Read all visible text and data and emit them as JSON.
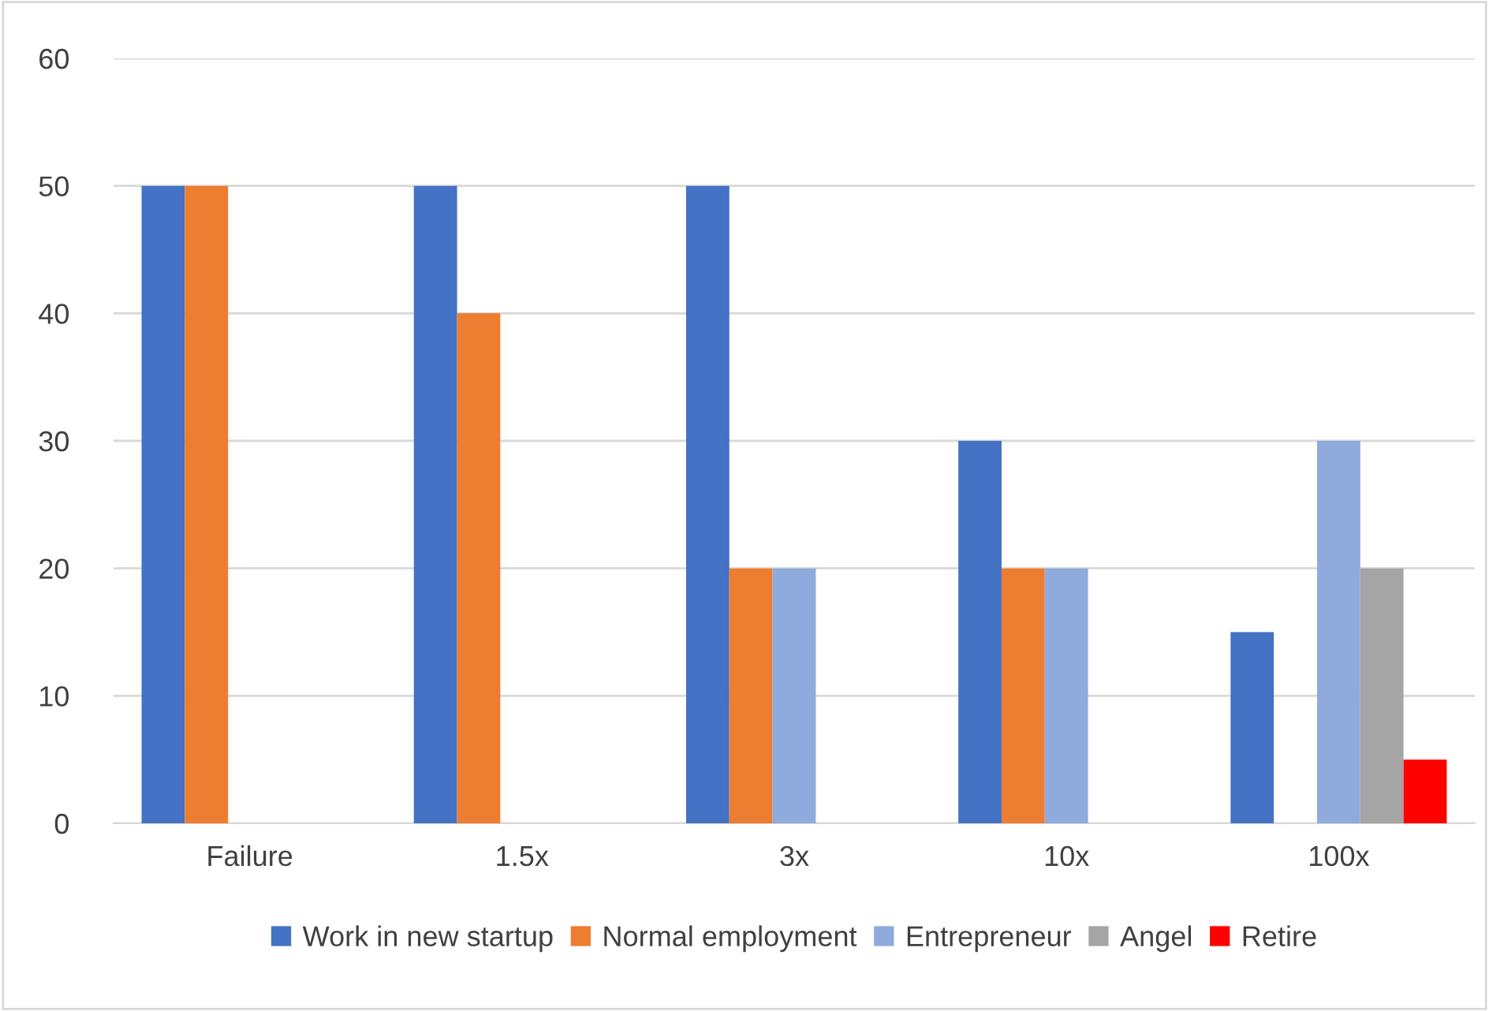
{
  "chart_data": {
    "type": "bar",
    "categories": [
      "Failure",
      "1.5x",
      "3x",
      "10x",
      "100x"
    ],
    "series": [
      {
        "name": "Work in new startup",
        "color": "#4472c4",
        "values": [
          50,
          50,
          50,
          30,
          15
        ]
      },
      {
        "name": "Normal employment",
        "color": "#ed7d31",
        "values": [
          50,
          40,
          20,
          20,
          0
        ]
      },
      {
        "name": "Entrepreneur",
        "color": "#8faadc",
        "values": [
          0,
          0,
          20,
          20,
          30
        ]
      },
      {
        "name": "Angel",
        "color": "#a5a5a5",
        "values": [
          0,
          0,
          0,
          0,
          20
        ]
      },
      {
        "name": "Retire",
        "color": "#ff0000",
        "values": [
          0,
          0,
          0,
          0,
          5
        ]
      }
    ],
    "ylim": [
      0,
      60
    ],
    "yticks": [
      0,
      10,
      20,
      30,
      40,
      50,
      60
    ],
    "grid": "y",
    "legend": "bottom"
  }
}
